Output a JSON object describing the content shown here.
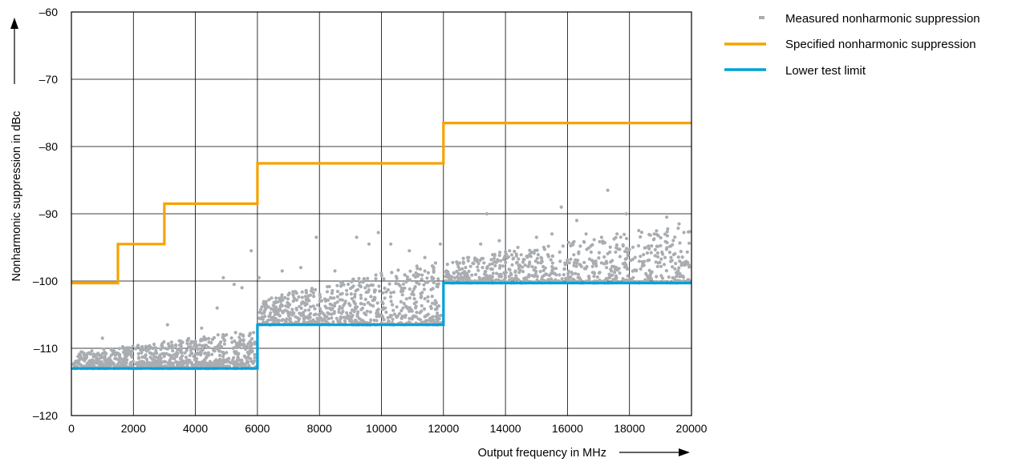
{
  "chart_data": {
    "type": "scatter",
    "title": "",
    "xlabel": "Output frequency in MHz",
    "ylabel": "Nonharmonic suppression in dBc",
    "xlim": [
      0,
      20000
    ],
    "ylim": [
      -120,
      -60
    ],
    "x_ticks": [
      0,
      2000,
      4000,
      6000,
      8000,
      10000,
      12000,
      14000,
      16000,
      18000,
      20000
    ],
    "x_tick_labels": [
      "0",
      "2000",
      "4000",
      "6000",
      "8000",
      "10000",
      "12000",
      "14000",
      "16000",
      "18000",
      "20000"
    ],
    "y_ticks": [
      -120,
      -110,
      -100,
      -90,
      -80,
      -70,
      -60
    ],
    "y_tick_labels": [
      "–120",
      "–110",
      "–100",
      "–90",
      "–80",
      "–70",
      "–60"
    ],
    "grid": true,
    "legend_position": "top-right",
    "series": [
      {
        "name": "Measured nonharmonic suppression",
        "kind": "scatter",
        "color": "#a9adb1",
        "segments": [
          {
            "x_range": [
              0,
              6000
            ],
            "floor": -113,
            "spread_mean": 1.2
          },
          {
            "x_range": [
              6000,
              12000
            ],
            "floor": -106.5,
            "spread_mean": 2.0
          },
          {
            "x_range": [
              12000,
              20000
            ],
            "floor": -100.3,
            "spread_mean": 1.8
          }
        ],
        "outliers": [
          [
            1000,
            -108.5
          ],
          [
            3100,
            -106.5
          ],
          [
            4200,
            -107
          ],
          [
            4700,
            -104
          ],
          [
            4900,
            -99.5
          ],
          [
            5250,
            -100.5
          ],
          [
            5500,
            -101
          ],
          [
            5800,
            -95.5
          ],
          [
            6050,
            -99.5
          ],
          [
            6800,
            -98.5
          ],
          [
            7400,
            -98
          ],
          [
            7900,
            -93.5
          ],
          [
            8500,
            -98.5
          ],
          [
            9200,
            -93.5
          ],
          [
            9600,
            -94.5
          ],
          [
            9900,
            -92.8
          ],
          [
            10300,
            -94.5
          ],
          [
            10900,
            -95.5
          ],
          [
            11400,
            -96.5
          ],
          [
            11900,
            -94.5
          ],
          [
            12800,
            -97
          ],
          [
            13200,
            -94.5
          ],
          [
            13400,
            -90
          ],
          [
            13800,
            -94
          ],
          [
            14400,
            -95
          ],
          [
            15000,
            -93.5
          ],
          [
            15500,
            -93
          ],
          [
            15800,
            -89
          ],
          [
            16300,
            -91
          ],
          [
            16600,
            -93
          ],
          [
            17100,
            -93.5
          ],
          [
            17300,
            -86.5
          ],
          [
            17600,
            -93
          ],
          [
            17900,
            -90
          ],
          [
            18300,
            -92.5
          ],
          [
            18800,
            -93
          ],
          [
            19200,
            -90.5
          ],
          [
            19600,
            -91.5
          ],
          [
            19900,
            -92.7
          ]
        ]
      },
      {
        "name": "Specified nonharmonic suppression",
        "kind": "step",
        "color": "#f5a300",
        "points": [
          [
            0,
            -100.3
          ],
          [
            1500,
            -100.3
          ],
          [
            1500,
            -94.5
          ],
          [
            3000,
            -94.5
          ],
          [
            3000,
            -88.5
          ],
          [
            6000,
            -88.5
          ],
          [
            6000,
            -82.5
          ],
          [
            12000,
            -82.5
          ],
          [
            12000,
            -76.5
          ],
          [
            20000,
            -76.5
          ]
        ]
      },
      {
        "name": "Lower test limit",
        "kind": "step",
        "color": "#00a0d8",
        "points": [
          [
            0,
            -113
          ],
          [
            6000,
            -113
          ],
          [
            6000,
            -106.5
          ],
          [
            12000,
            -106.5
          ],
          [
            12000,
            -100.3
          ],
          [
            20000,
            -100.3
          ]
        ]
      }
    ]
  }
}
